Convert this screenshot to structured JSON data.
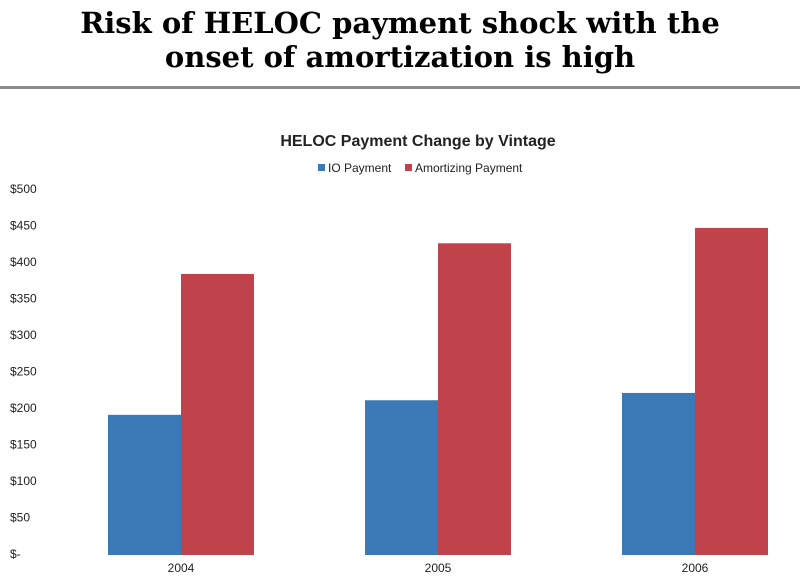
{
  "slide_title": [
    "Risk of HELOC payment shock with the",
    "onset of amortization is high"
  ],
  "chart_data": {
    "type": "bar",
    "title": "HELOC Payment Change by Vintage",
    "categories": [
      "2004",
      "2005",
      "2006"
    ],
    "series": [
      {
        "name": "IO Payment",
        "color": "#3b7ab7",
        "values": [
          192,
          212,
          222
        ]
      },
      {
        "name": "Amortizing Payment",
        "color": "#c0424b",
        "values": [
          385,
          427,
          448
        ]
      }
    ],
    "ylim": [
      0,
      500
    ],
    "yticks": [
      {
        "value": 0,
        "label": "$-"
      },
      {
        "value": 50,
        "label": "$50"
      },
      {
        "value": 100,
        "label": "$100"
      },
      {
        "value": 150,
        "label": "$150"
      },
      {
        "value": 200,
        "label": "$200"
      },
      {
        "value": 250,
        "label": "$250"
      },
      {
        "value": 300,
        "label": "$300"
      },
      {
        "value": 350,
        "label": "$350"
      },
      {
        "value": 400,
        "label": "$400"
      },
      {
        "value": 450,
        "label": "$450"
      },
      {
        "value": 500,
        "label": "$500"
      }
    ],
    "grid": false
  }
}
